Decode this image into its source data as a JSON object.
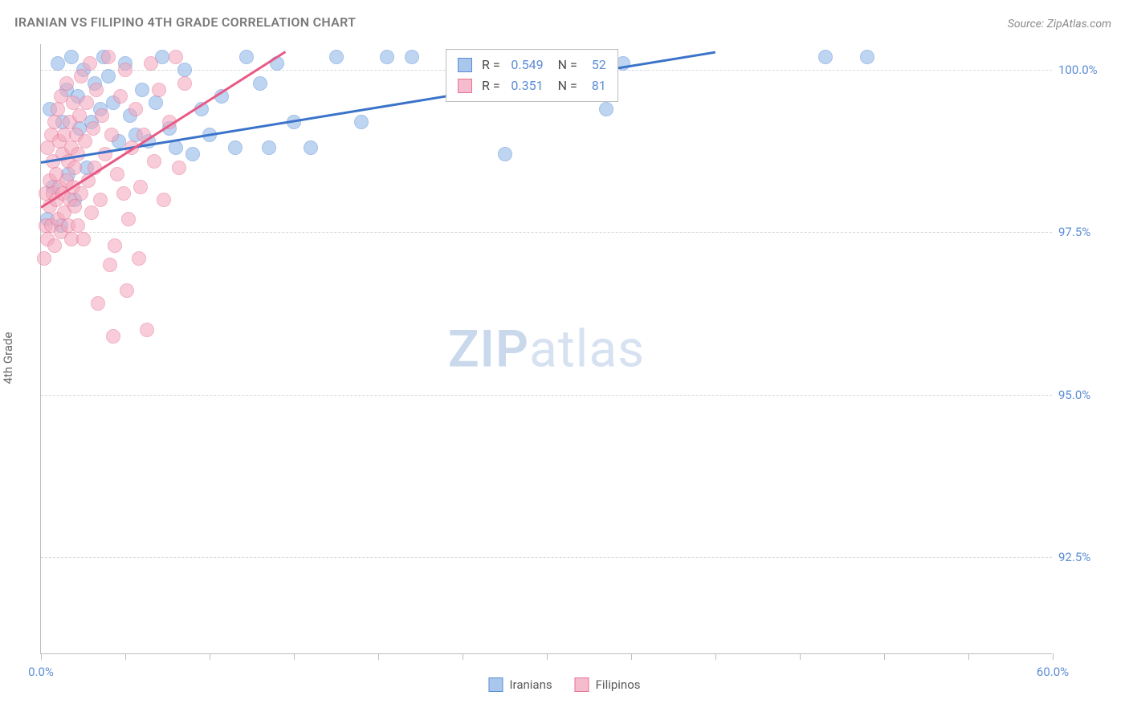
{
  "title": "IRANIAN VS FILIPINO 4TH GRADE CORRELATION CHART",
  "source": "Source: ZipAtlas.com",
  "ylabel": "4th Grade",
  "watermark_bold": "ZIP",
  "watermark_rest": "atlas",
  "chart": {
    "type": "scatter",
    "xlim": [
      0,
      60
    ],
    "ylim": [
      91,
      100.4
    ],
    "ytick_step": 2.5,
    "ytick_labels": [
      "92.5%",
      "95.0%",
      "97.5%",
      "100.0%"
    ],
    "ytick_values": [
      92.5,
      95.0,
      97.5,
      100.0
    ],
    "xtick_values": [
      0,
      5,
      10,
      15,
      20,
      25,
      30,
      35,
      40,
      45,
      50,
      55,
      60
    ],
    "xlabel_min": "0.0%",
    "xlabel_max": "60.0%",
    "grid_color": "#d8d8d8",
    "background_color": "#ffffff",
    "marker_radius": 9,
    "marker_opacity": 0.55,
    "series": [
      {
        "name": "Iranians",
        "color_fill": "#8ab4e8",
        "color_border": "#5b8dd6",
        "trend_color": "#3a73c9",
        "R": "0.549",
        "N": "52",
        "trend": {
          "x1": 0,
          "y1": 98.6,
          "x2": 40,
          "y2": 100.3
        },
        "points": [
          [
            0.4,
            97.7
          ],
          [
            0.5,
            99.4
          ],
          [
            0.7,
            98.2
          ],
          [
            1.0,
            100.1
          ],
          [
            1.2,
            97.6
          ],
          [
            1.3,
            99.2
          ],
          [
            1.5,
            99.7
          ],
          [
            1.6,
            98.4
          ],
          [
            1.8,
            100.2
          ],
          [
            2.0,
            98.0
          ],
          [
            2.2,
            99.6
          ],
          [
            2.3,
            99.1
          ],
          [
            2.5,
            100.0
          ],
          [
            2.7,
            98.5
          ],
          [
            3.0,
            99.2
          ],
          [
            3.2,
            99.8
          ],
          [
            3.5,
            99.4
          ],
          [
            3.7,
            100.2
          ],
          [
            4.0,
            99.9
          ],
          [
            4.3,
            99.5
          ],
          [
            4.6,
            98.9
          ],
          [
            5.0,
            100.1
          ],
          [
            5.3,
            99.3
          ],
          [
            5.6,
            99.0
          ],
          [
            6.0,
            99.7
          ],
          [
            6.4,
            98.9
          ],
          [
            6.8,
            99.5
          ],
          [
            7.2,
            100.2
          ],
          [
            7.6,
            99.1
          ],
          [
            8.0,
            98.8
          ],
          [
            8.5,
            100.0
          ],
          [
            9.0,
            98.7
          ],
          [
            9.5,
            99.4
          ],
          [
            10.0,
            99.0
          ],
          [
            10.7,
            99.6
          ],
          [
            11.5,
            98.8
          ],
          [
            12.2,
            100.2
          ],
          [
            13.0,
            99.8
          ],
          [
            13.5,
            98.8
          ],
          [
            14.0,
            100.1
          ],
          [
            15.0,
            99.2
          ],
          [
            16.0,
            98.8
          ],
          [
            17.5,
            100.2
          ],
          [
            19.0,
            99.2
          ],
          [
            20.5,
            100.2
          ],
          [
            22.0,
            100.2
          ],
          [
            27.5,
            98.7
          ],
          [
            31.0,
            100.2
          ],
          [
            33.5,
            99.4
          ],
          [
            34.5,
            100.1
          ],
          [
            46.5,
            100.2
          ],
          [
            49.0,
            100.2
          ]
        ]
      },
      {
        "name": "Filipinos",
        "color_fill": "#f4a6bb",
        "color_border": "#e77396",
        "trend_color": "#e75a85",
        "R": "0.351",
        "N": "81",
        "trend": {
          "x1": 0,
          "y1": 97.9,
          "x2": 14.5,
          "y2": 100.3
        },
        "points": [
          [
            0.2,
            97.1
          ],
          [
            0.3,
            97.6
          ],
          [
            0.3,
            98.1
          ],
          [
            0.4,
            97.4
          ],
          [
            0.4,
            98.8
          ],
          [
            0.5,
            97.9
          ],
          [
            0.5,
            98.3
          ],
          [
            0.6,
            97.6
          ],
          [
            0.6,
            99.0
          ],
          [
            0.7,
            98.1
          ],
          [
            0.7,
            98.6
          ],
          [
            0.8,
            97.3
          ],
          [
            0.8,
            99.2
          ],
          [
            0.9,
            98.0
          ],
          [
            0.9,
            98.4
          ],
          [
            1.0,
            97.7
          ],
          [
            1.0,
            99.4
          ],
          [
            1.1,
            98.2
          ],
          [
            1.1,
            98.9
          ],
          [
            1.2,
            97.5
          ],
          [
            1.2,
            99.6
          ],
          [
            1.3,
            98.1
          ],
          [
            1.3,
            98.7
          ],
          [
            1.4,
            97.8
          ],
          [
            1.4,
            99.0
          ],
          [
            1.5,
            98.3
          ],
          [
            1.5,
            99.8
          ],
          [
            1.6,
            97.6
          ],
          [
            1.6,
            98.6
          ],
          [
            1.7,
            98.0
          ],
          [
            1.7,
            99.2
          ],
          [
            1.8,
            97.4
          ],
          [
            1.8,
            98.8
          ],
          [
            1.9,
            98.2
          ],
          [
            1.9,
            99.5
          ],
          [
            2.0,
            97.9
          ],
          [
            2.0,
            98.5
          ],
          [
            2.1,
            99.0
          ],
          [
            2.2,
            97.6
          ],
          [
            2.2,
            98.7
          ],
          [
            2.3,
            99.3
          ],
          [
            2.4,
            98.1
          ],
          [
            2.4,
            99.9
          ],
          [
            2.5,
            97.4
          ],
          [
            2.6,
            98.9
          ],
          [
            2.7,
            99.5
          ],
          [
            2.8,
            98.3
          ],
          [
            2.9,
            100.1
          ],
          [
            3.0,
            97.8
          ],
          [
            3.1,
            99.1
          ],
          [
            3.2,
            98.5
          ],
          [
            3.3,
            99.7
          ],
          [
            3.5,
            98.0
          ],
          [
            3.6,
            99.3
          ],
          [
            3.8,
            98.7
          ],
          [
            4.0,
            100.2
          ],
          [
            4.1,
            97.0
          ],
          [
            4.2,
            99.0
          ],
          [
            4.4,
            97.3
          ],
          [
            4.5,
            98.4
          ],
          [
            4.7,
            99.6
          ],
          [
            4.9,
            98.1
          ],
          [
            5.0,
            100.0
          ],
          [
            5.1,
            96.6
          ],
          [
            5.2,
            97.7
          ],
          [
            5.4,
            98.8
          ],
          [
            5.6,
            99.4
          ],
          [
            5.8,
            97.1
          ],
          [
            5.9,
            98.2
          ],
          [
            6.1,
            99.0
          ],
          [
            6.3,
            96.0
          ],
          [
            6.5,
            100.1
          ],
          [
            6.7,
            98.6
          ],
          [
            7.0,
            99.7
          ],
          [
            7.3,
            98.0
          ],
          [
            7.6,
            99.2
          ],
          [
            8.0,
            100.2
          ],
          [
            8.2,
            98.5
          ],
          [
            8.5,
            99.8
          ],
          [
            4.3,
            95.9
          ],
          [
            3.4,
            96.4
          ]
        ]
      }
    ]
  },
  "legend_bottom": [
    {
      "name": "Iranians",
      "color": "blue"
    },
    {
      "name": "Filipinos",
      "color": "pink"
    }
  ]
}
